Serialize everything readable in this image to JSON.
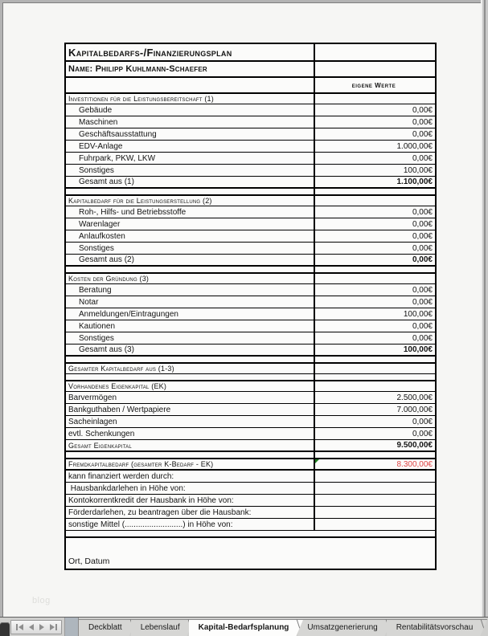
{
  "page": {
    "watermark": "blog"
  },
  "colors": {
    "alert_value": "#e04545",
    "comment_marker": "#1e7d1e"
  },
  "table": {
    "title": "Kapitalbedarfs-/Finanzierungsplan",
    "name_row": "Name: Philipp Kuhlmann-Schaefer",
    "value_column_header": "eigene Werte",
    "rows": [
      {
        "type": "section",
        "label": "Investitionen für die Leistungsbereitschaft (1)",
        "value": ""
      },
      {
        "type": "item",
        "label": "Gebäude",
        "value": "0,00€"
      },
      {
        "type": "item",
        "label": "Maschinen",
        "value": "0,00€"
      },
      {
        "type": "item",
        "label": "Geschäftsausstattung",
        "value": "0,00€"
      },
      {
        "type": "item",
        "label": "EDV-Anlage",
        "value": "1.000,00€"
      },
      {
        "type": "item",
        "label": "Fuhrpark, PKW, LKW",
        "value": "0,00€"
      },
      {
        "type": "item",
        "label": "Sonstiges",
        "value": "100,00€"
      },
      {
        "type": "total",
        "label": "Gesamt aus (1)",
        "value": "1.100,00€"
      },
      {
        "type": "spacer"
      },
      {
        "type": "section",
        "label": "Kapitalbedarf für die Leistungserstellung (2)",
        "value": ""
      },
      {
        "type": "item",
        "label": "Roh-, Hilfs- und Betriebsstoffe",
        "value": "0,00€"
      },
      {
        "type": "item",
        "label": "Warenlager",
        "value": "0,00€"
      },
      {
        "type": "item",
        "label": "Anlaufkosten",
        "value": "0,00€"
      },
      {
        "type": "item",
        "label": "Sonstiges",
        "value": "0,00€"
      },
      {
        "type": "total",
        "label": "Gesamt aus (2)",
        "value": "0,00€"
      },
      {
        "type": "spacer"
      },
      {
        "type": "section",
        "label": "Kosten der Gründung (3)",
        "value": ""
      },
      {
        "type": "item",
        "label": "Beratung",
        "value": "0,00€"
      },
      {
        "type": "item",
        "label": "Notar",
        "value": "0,00€"
      },
      {
        "type": "item",
        "label": "Anmeldungen/Eintragungen",
        "value": "100,00€"
      },
      {
        "type": "item",
        "label": "Kautionen",
        "value": "0,00€"
      },
      {
        "type": "item",
        "label": "Sonstiges",
        "value": "0,00€"
      },
      {
        "type": "total",
        "label": "Gesamt aus (3)",
        "value": "100,00€"
      },
      {
        "type": "spacer"
      },
      {
        "type": "section",
        "label": "Gesamter Kapitalbedarf aus (1-3)",
        "value": ""
      },
      {
        "type": "spacer"
      },
      {
        "type": "section",
        "label": "Vorhandenes Eigenkapital (EK)",
        "value": ""
      },
      {
        "type": "plain",
        "label": "Barvermögen",
        "value": "2.500,00€"
      },
      {
        "type": "plain",
        "label": "Bankguthaben / Wertpapiere",
        "value": "7.000,00€"
      },
      {
        "type": "plain",
        "label": "Sacheinlagen",
        "value": "0,00€"
      },
      {
        "type": "plain",
        "label": "evtl. Schenkungen",
        "value": "0,00€"
      },
      {
        "type": "total_caps",
        "label": "Gesamt Eigenkapital",
        "value": "9.500,00€"
      },
      {
        "type": "spacer"
      },
      {
        "type": "alert",
        "label": "Fremdkapitalbedarf (gesamter K-Bedarf - EK)",
        "value": "8.300,00€",
        "comment": true
      },
      {
        "type": "plain",
        "label": "kann finanziert werden durch:",
        "value": ""
      },
      {
        "type": "plain",
        "label": " Hausbankdarlehen in Höhe von:",
        "value": ""
      },
      {
        "type": "plain",
        "label": "Kontokorrentkredit der Hausbank in Höhe von:",
        "value": ""
      },
      {
        "type": "plain",
        "label": "Förderdarlehen, zu beantragen über die Hausbank:",
        "value": ""
      },
      {
        "type": "plain",
        "label": "sonstige Mittel (..........................) in Höhe von:",
        "value": ""
      },
      {
        "type": "spacer_full"
      },
      {
        "type": "signature",
        "label": "Ort, Datum"
      }
    ]
  },
  "tab_bar": {
    "nav_icons": [
      "first-sheet",
      "previous-sheet",
      "next-sheet",
      "last-sheet"
    ],
    "tabs": [
      {
        "label": "Deckblatt",
        "active": false
      },
      {
        "label": "Lebenslauf",
        "active": false
      },
      {
        "label": "Kapital-Bedarfsplanung",
        "active": true
      },
      {
        "label": "Umsatzgenerierung",
        "active": false
      },
      {
        "label": "Rentabilitätsvorschau",
        "active": false
      }
    ]
  }
}
